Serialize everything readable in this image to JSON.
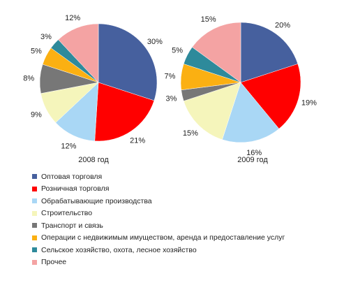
{
  "colors": {
    "categories": [
      "#46609e",
      "#ff0000",
      "#a9d7f5",
      "#f5f5bb",
      "#777777",
      "#fbb012",
      "#2e8a9b",
      "#f4a3a3"
    ]
  },
  "legend": [
    "Оптовая торговля",
    "Розничная торговля",
    "Обрабатывающие производства",
    "Строительство",
    "Транспорт и связь",
    "Операции с недвижимым имуществом, аренда и предоставление услуг",
    "Сельское хозяйство, охота, лесное хозяйство",
    "Прочее"
  ],
  "chart_data": [
    {
      "type": "pie",
      "title": "2008 год",
      "categories": [
        "Оптовая торговля",
        "Розничная торговля",
        "Обрабатывающие производства",
        "Строительство",
        "Транспорт и связь",
        "Операции с недвижимым имуществом, аренда и предоставление услуг",
        "Сельское хозяйство, охота, лесное хозяйство",
        "Прочее"
      ],
      "values": [
        30,
        21,
        12,
        9,
        8,
        5,
        3,
        12
      ],
      "labels": [
        "30%",
        "21%",
        "12%",
        "9%",
        "8%",
        "5%",
        "3%",
        "12%"
      ]
    },
    {
      "type": "pie",
      "title": "2009 год",
      "categories": [
        "Оптовая торговля",
        "Розничная торговля",
        "Обрабатывающие производства",
        "Строительство",
        "Транспорт и связь",
        "Операции с недвижимым имуществом, аренда и предоставление услуг",
        "Сельское хозяйство, охота, лесное хозяйство",
        "Прочее"
      ],
      "values": [
        20,
        19,
        16,
        15,
        3,
        7,
        5,
        15
      ],
      "labels": [
        "20%",
        "19%",
        "16%",
        "15%",
        "3%",
        "7%",
        "5%",
        "15%"
      ]
    }
  ]
}
